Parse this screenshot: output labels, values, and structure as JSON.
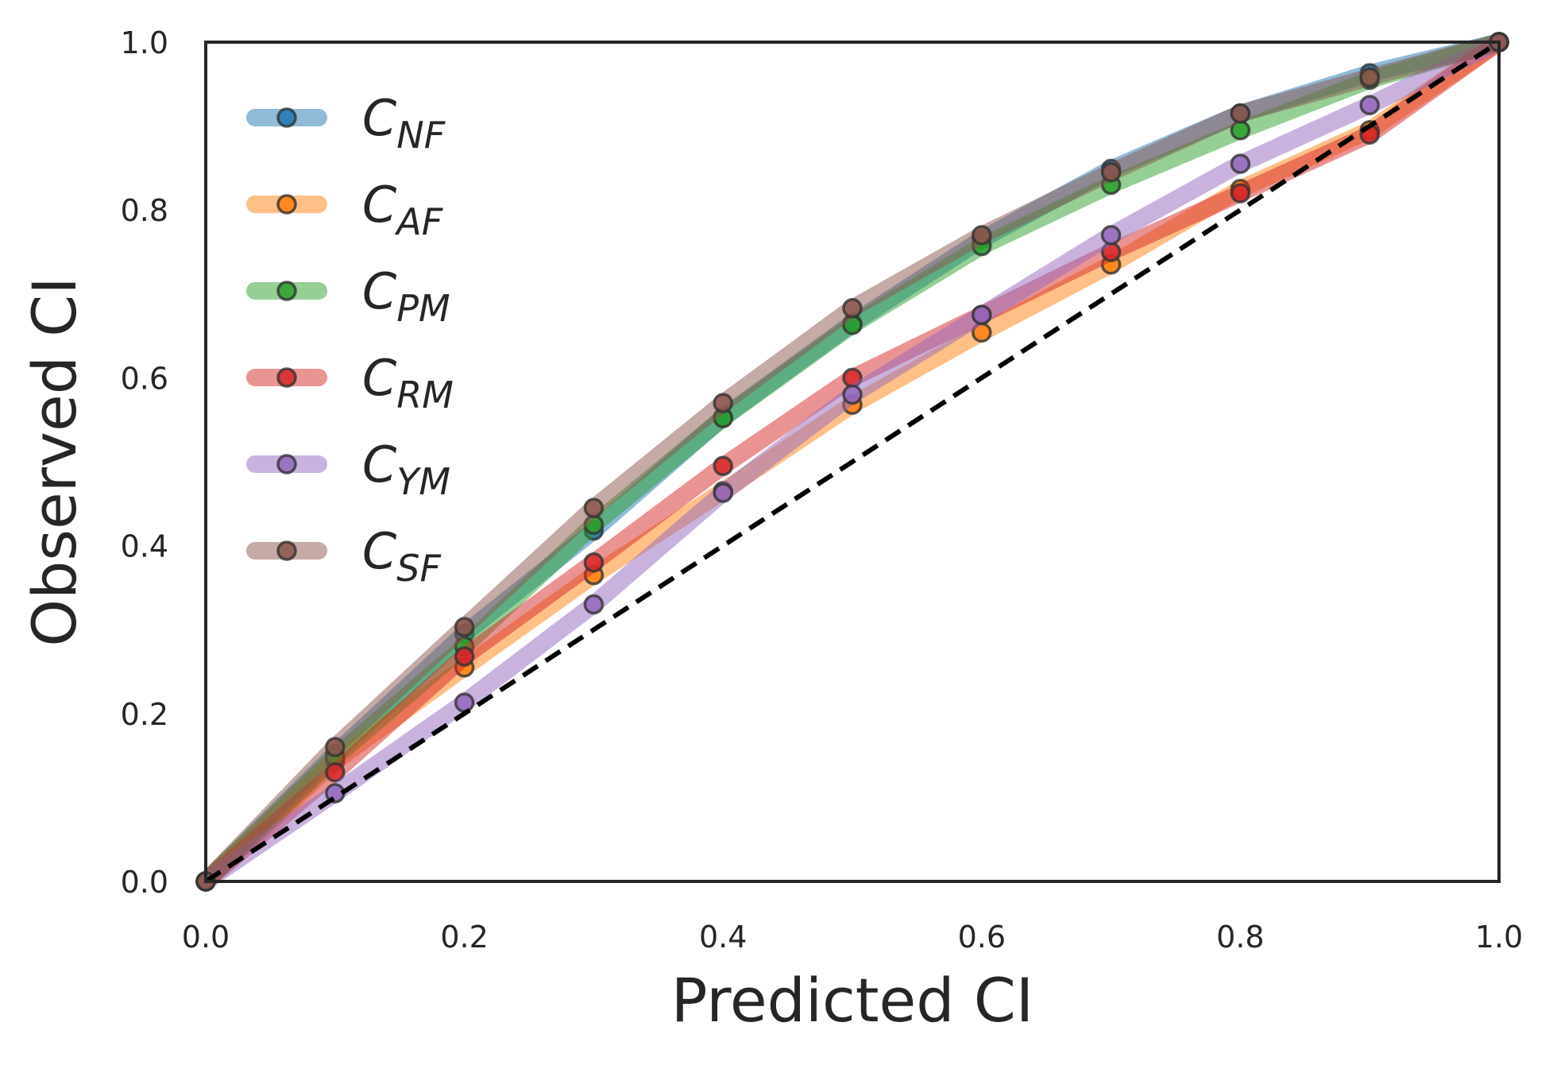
{
  "chart_data": {
    "type": "line",
    "title": "",
    "xlabel": "Predicted CI",
    "ylabel": "Observed CI",
    "xlim": [
      0,
      1
    ],
    "ylim": [
      0,
      1
    ],
    "x": [
      0.0,
      0.1,
      0.2,
      0.3,
      0.4,
      0.5,
      0.6,
      0.7,
      0.8,
      0.9,
      1.0
    ],
    "xticks": [
      "0.0",
      "0.2",
      "0.4",
      "0.6",
      "0.8",
      "1.0"
    ],
    "yticks": [
      "0.0",
      "0.2",
      "0.4",
      "0.6",
      "0.8",
      "1.0"
    ],
    "grid": false,
    "legend_position": "upper-left",
    "reference_line": {
      "style": "dashed",
      "color": "#000000",
      "from": [
        0,
        0
      ],
      "to": [
        1,
        1
      ]
    },
    "series": [
      {
        "name": "C",
        "subscript": "NF",
        "color": "#1f77b4",
        "values": [
          0.0,
          0.152,
          0.295,
          0.418,
          0.553,
          0.665,
          0.765,
          0.849,
          0.915,
          0.963,
          1.0
        ]
      },
      {
        "name": "C",
        "subscript": "AF",
        "color": "#ff7f0e",
        "values": [
          0.0,
          0.143,
          0.255,
          0.365,
          0.465,
          0.568,
          0.654,
          0.735,
          0.825,
          0.895,
          1.0
        ]
      },
      {
        "name": "C",
        "subscript": "PM",
        "color": "#2ca02c",
        "values": [
          0.0,
          0.148,
          0.28,
          0.425,
          0.552,
          0.663,
          0.757,
          0.83,
          0.895,
          0.955,
          1.0
        ]
      },
      {
        "name": "C",
        "subscript": "RM",
        "color": "#d62728",
        "values": [
          0.0,
          0.13,
          0.268,
          0.38,
          0.495,
          0.6,
          0.675,
          0.75,
          0.82,
          0.89,
          1.0
        ]
      },
      {
        "name": "C",
        "subscript": "YM",
        "color": "#9467bd",
        "values": [
          0.0,
          0.105,
          0.213,
          0.33,
          0.463,
          0.58,
          0.675,
          0.77,
          0.855,
          0.925,
          1.0
        ]
      },
      {
        "name": "C",
        "subscript": "SF",
        "color": "#8c564b",
        "values": [
          0.0,
          0.16,
          0.303,
          0.445,
          0.57,
          0.683,
          0.77,
          0.845,
          0.915,
          0.958,
          1.0
        ]
      }
    ]
  }
}
